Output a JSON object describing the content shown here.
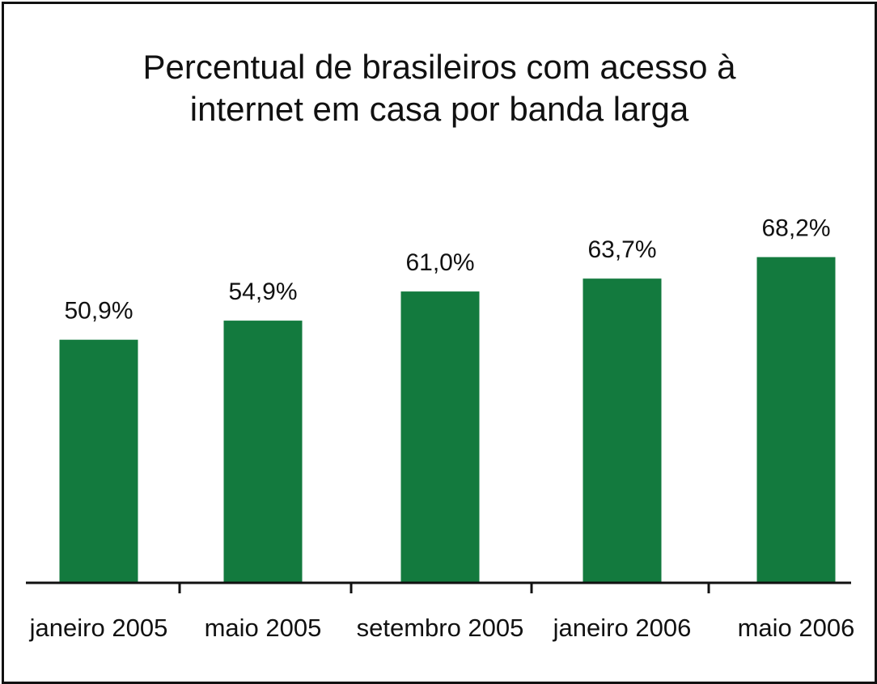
{
  "chart_data": {
    "type": "bar",
    "title_lines": [
      "Percentual de brasileiros com acesso à",
      "internet em casa por banda larga"
    ],
    "categories": [
      "janeiro 2005",
      "maio 2005",
      "setembro 2005",
      "janeiro 2006",
      "maio 2006"
    ],
    "values": [
      50.9,
      54.9,
      61.0,
      63.7,
      68.2
    ],
    "value_labels": [
      "50,9%",
      "54,9%",
      "61,0%",
      "63,7%",
      "68,2%"
    ],
    "unit": "%",
    "ylim": [
      0,
      100
    ],
    "grid": false,
    "legend": "none",
    "bar_color": "#137a3e",
    "axis_color": "#111111"
  }
}
